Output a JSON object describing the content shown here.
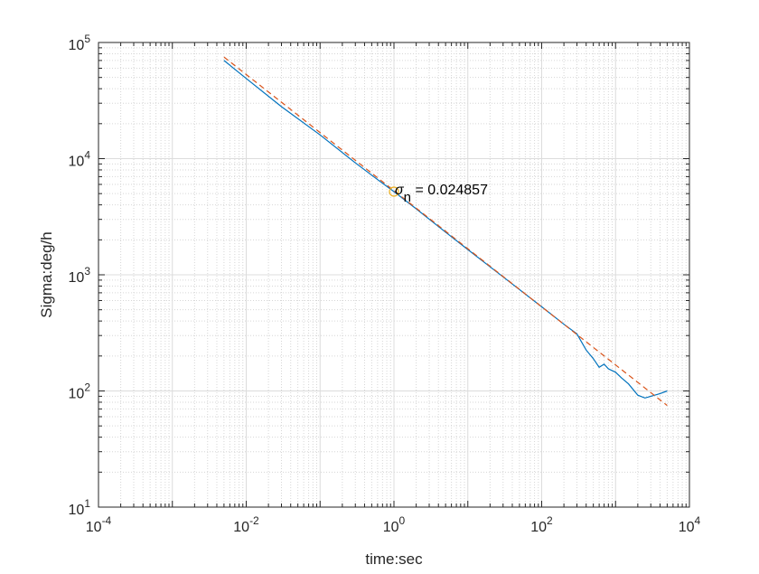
{
  "chart_data": {
    "type": "line",
    "title": "",
    "xlabel": "time:sec",
    "ylabel": "Sigma:deg/h",
    "xscale": "log",
    "yscale": "log",
    "xlim": [
      0.0001,
      10000
    ],
    "ylim": [
      10,
      100000
    ],
    "grid": "major and minor, dotted",
    "legend": "none",
    "x_ticks": [
      {
        "mantissa": "10",
        "exp": "-4"
      },
      {
        "mantissa": "10",
        "exp": "-2"
      },
      {
        "mantissa": "10",
        "exp": "0"
      },
      {
        "mantissa": "10",
        "exp": "2"
      },
      {
        "mantissa": "10",
        "exp": "4"
      }
    ],
    "y_ticks": [
      {
        "mantissa": "10",
        "exp": "1"
      },
      {
        "mantissa": "10",
        "exp": "2"
      },
      {
        "mantissa": "10",
        "exp": "3"
      },
      {
        "mantissa": "10",
        "exp": "4"
      },
      {
        "mantissa": "10",
        "exp": "5"
      }
    ],
    "series": [
      {
        "color": "#0072BD",
        "style": "solid",
        "x": [
          0.005,
          0.01,
          0.03,
          0.1,
          0.3,
          0.6,
          1,
          2,
          5,
          10,
          30,
          100,
          200,
          300,
          400,
          500,
          600,
          700,
          800,
          1000,
          1200,
          1500,
          2000,
          2500,
          3000,
          4000,
          5000
        ],
        "y": [
          70000,
          49000,
          28000,
          16000,
          9200,
          6600,
          5200,
          3700,
          2330,
          1650,
          960,
          530,
          375,
          310,
          225,
          190,
          160,
          170,
          155,
          145,
          130,
          115,
          92,
          87,
          90,
          95,
          100
        ]
      },
      {
        "color": "#D95319",
        "style": "dashed",
        "x": [
          0.005,
          5000
        ],
        "y": [
          75000,
          75
        ]
      }
    ],
    "annotations": [
      {
        "marker": "circle",
        "marker_color": "#EDB120",
        "x": 1,
        "y": 5200,
        "symbol": "σ",
        "subscript": "n",
        "value_text": " = 0.024857"
      }
    ]
  }
}
